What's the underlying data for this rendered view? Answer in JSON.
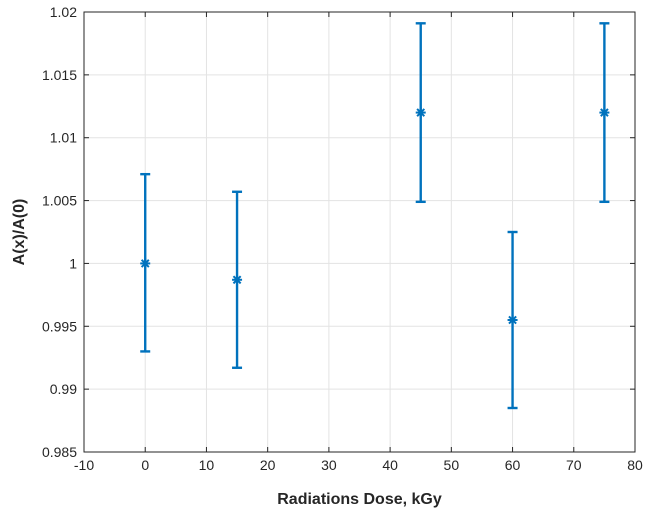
{
  "chart_data": {
    "type": "scatter",
    "title": "",
    "xlabel": "Radiations Dose, kGy",
    "ylabel": "A(x)/A(0)",
    "xlim": [
      -10,
      80
    ],
    "ylim": [
      0.985,
      1.02
    ],
    "xticks": [
      "-10",
      "0",
      "10",
      "20",
      "30",
      "40",
      "50",
      "60",
      "70",
      "80"
    ],
    "yticks": [
      "0.985",
      "0.99",
      "0.995",
      "1",
      "1.005",
      "1.01",
      "1.015",
      "1.02"
    ],
    "grid": true,
    "marker": "asterisk",
    "color": "#0072BD",
    "points": [
      {
        "x": 0,
        "y": 1.0,
        "err_low": 0.993,
        "err_high": 1.0071
      },
      {
        "x": 15,
        "y": 0.9987,
        "err_low": 0.9917,
        "err_high": 1.0057
      },
      {
        "x": 45,
        "y": 1.012,
        "err_low": 1.0049,
        "err_high": 1.0191
      },
      {
        "x": 60,
        "y": 0.9955,
        "err_low": 0.9885,
        "err_high": 1.0025
      },
      {
        "x": 75,
        "y": 1.012,
        "err_low": 1.0049,
        "err_high": 1.0191
      }
    ]
  }
}
